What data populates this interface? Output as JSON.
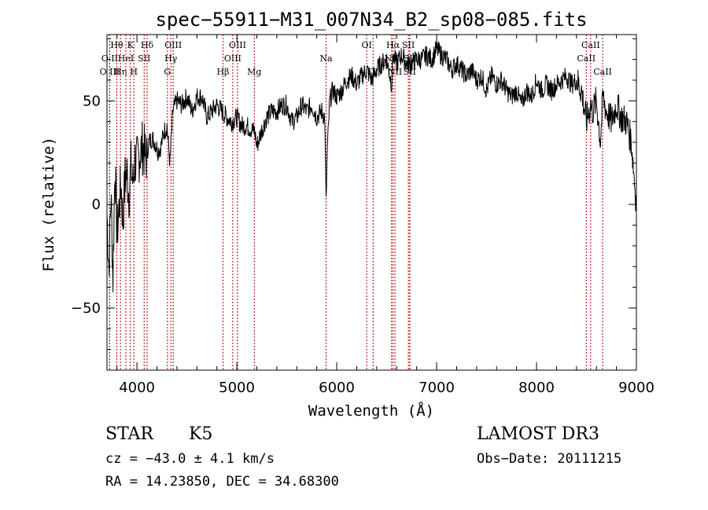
{
  "chart_data": {
    "type": "line",
    "title": "spec−55911−M31_007N34_B2_sp08−085.fits",
    "xlabel": "Wavelength (Å)",
    "ylabel": "Flux (relative)",
    "xlim": [
      3700,
      9000
    ],
    "ylim": [
      -80,
      82
    ],
    "x_ticks": [
      4000,
      5000,
      6000,
      7000,
      8000,
      9000
    ],
    "x_tick_labels": [
      "4000",
      "5000",
      "6000",
      "7000",
      "8000",
      "9000"
    ],
    "y_ticks": [
      -50,
      0,
      50
    ],
    "y_tick_labels": [
      "−50",
      "0",
      "50"
    ],
    "series": [
      {
        "name": "flux",
        "x": [
          3700,
          3720,
          3740,
          3760,
          3780,
          3800,
          3820,
          3840,
          3860,
          3880,
          3900,
          3920,
          3940,
          3960,
          3980,
          4000,
          4030,
          4060,
          4090,
          4120,
          4150,
          4180,
          4210,
          4240,
          4270,
          4300,
          4330,
          4360,
          4400,
          4450,
          4500,
          4550,
          4600,
          4650,
          4700,
          4750,
          4800,
          4850,
          4900,
          4950,
          5000,
          5050,
          5100,
          5150,
          5180,
          5200,
          5250,
          5300,
          5350,
          5400,
          5450,
          5500,
          5550,
          5600,
          5650,
          5700,
          5750,
          5800,
          5850,
          5880,
          5893,
          5905,
          5930,
          5960,
          6000,
          6050,
          6100,
          6150,
          6200,
          6250,
          6300,
          6350,
          6400,
          6450,
          6500,
          6550,
          6563,
          6580,
          6600,
          6650,
          6700,
          6750,
          6800,
          6850,
          6900,
          6950,
          7000,
          7050,
          7100,
          7150,
          7200,
          7250,
          7300,
          7350,
          7400,
          7450,
          7500,
          7550,
          7600,
          7650,
          7700,
          7750,
          7800,
          7850,
          7900,
          7950,
          8000,
          8050,
          8100,
          8150,
          8200,
          8250,
          8300,
          8350,
          8400,
          8450,
          8500,
          8540,
          8560,
          8600,
          8640,
          8665,
          8700,
          8750,
          8800,
          8850,
          8900,
          8950,
          9000
        ],
        "y": [
          -5,
          -30,
          5,
          -35,
          20,
          -15,
          -2,
          10,
          -8,
          12,
          15,
          5,
          18,
          10,
          22,
          20,
          25,
          28,
          22,
          30,
          32,
          30,
          26,
          28,
          35,
          38,
          20,
          45,
          50,
          48,
          52,
          45,
          52,
          52,
          42,
          45,
          48,
          45,
          42,
          40,
          42,
          38,
          38,
          36,
          35,
          28,
          36,
          42,
          45,
          45,
          48,
          48,
          40,
          42,
          48,
          45,
          48,
          42,
          45,
          42,
          0,
          25,
          50,
          55,
          52,
          55,
          60,
          62,
          58,
          62,
          65,
          60,
          65,
          68,
          70,
          58,
          72,
          70,
          68,
          72,
          68,
          68,
          70,
          70,
          72,
          70,
          75,
          72,
          70,
          65,
          68,
          65,
          62,
          65,
          60,
          62,
          55,
          62,
          58,
          60,
          55,
          52,
          55,
          48,
          55,
          52,
          60,
          55,
          58,
          55,
          58,
          60,
          62,
          58,
          60,
          55,
          40,
          48,
          45,
          50,
          30,
          52,
          45,
          40,
          48,
          42,
          40,
          30,
          0
        ]
      }
    ],
    "spectral_lines": [
      {
        "name": "Hθ",
        "wl": 3798,
        "row": 0
      },
      {
        "name": "O II",
        "wl": 3727,
        "row": 1
      },
      {
        "name": "O III",
        "wl": 3727,
        "row": 2
      },
      {
        "name": "Hη",
        "wl": 3835,
        "row": 2
      },
      {
        "name": "K",
        "wl": 3934,
        "row": 0
      },
      {
        "name": "HeI",
        "wl": 3889,
        "row": 1
      },
      {
        "name": "SII",
        "wl": 4072,
        "row": 1
      },
      {
        "name": "H",
        "wl": 3969,
        "row": 2
      },
      {
        "name": "Hδ",
        "wl": 4102,
        "row": 0
      },
      {
        "name": "OIII",
        "wl": 4363,
        "row": 0
      },
      {
        "name": "Hγ",
        "wl": 4340,
        "row": 1
      },
      {
        "name": "G",
        "wl": 4305,
        "row": 2
      },
      {
        "name": "Hβ",
        "wl": 4861,
        "row": 2
      },
      {
        "name": "OIII",
        "wl": 5007,
        "row": 0
      },
      {
        "name": "OIII",
        "wl": 4959,
        "row": 1
      },
      {
        "name": "Mg",
        "wl": 5175,
        "row": 2
      },
      {
        "name": "Na",
        "wl": 5893,
        "row": 1
      },
      {
        "name": "OI",
        "wl": 6300,
        "row": 0
      },
      {
        "name": "OI",
        "wl": 6364,
        "row": 2
      },
      {
        "name": "Hα",
        "wl": 6563,
        "row": 0
      },
      {
        "name": "NII",
        "wl": 6548,
        "row": 1
      },
      {
        "name": "NII",
        "wl": 6583,
        "row": 2
      },
      {
        "name": "SII",
        "wl": 6717,
        "row": 0
      },
      {
        "name": "SII",
        "wl": 6731,
        "row": 1
      },
      {
        "name": "SII",
        "wl": 6731,
        "row": 2
      },
      {
        "name": "CaII",
        "wl": 8542,
        "row": 0
      },
      {
        "name": "CaII",
        "wl": 8498,
        "row": 1
      },
      {
        "name": "CaII",
        "wl": 8662,
        "row": 2
      }
    ]
  },
  "info": {
    "class": "STAR",
    "subclass": "K5",
    "survey": "LAMOST DR3",
    "cz": "cz = −43.0 ± 4.1 km/s",
    "obs_date": "Obs−Date: 20111215",
    "radec": "RA =  14.23850, DEC =  34.68300"
  },
  "colors": {
    "line_marker": "#b00000",
    "spectrum": "#000000"
  }
}
